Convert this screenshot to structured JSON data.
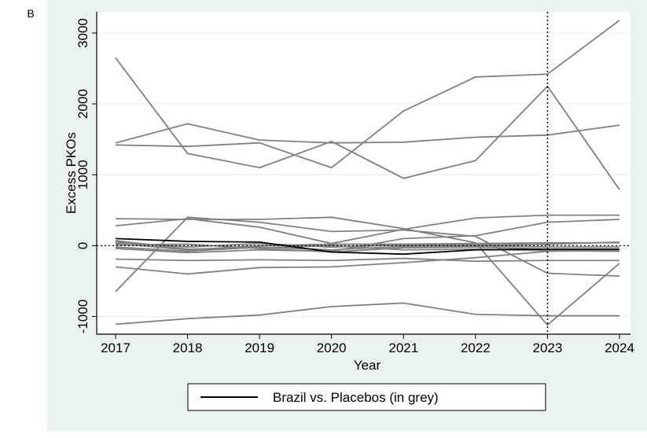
{
  "panel_label": "B",
  "colors": {
    "background": "#eaf2f3",
    "plot_bg": "#ffffff",
    "grid": "#e6eef0",
    "placebo": "#808080",
    "treated": "#000000"
  },
  "chart_data": {
    "type": "line",
    "title": "",
    "xlabel": "Year",
    "ylabel": "Excess PKOs",
    "x": [
      2017,
      2018,
      2019,
      2020,
      2021,
      2022,
      2023,
      2024
    ],
    "xlim": [
      2017,
      2024
    ],
    "ylim": [
      -1250,
      3300
    ],
    "yticks": [
      -1000,
      0,
      1000,
      2000,
      3000
    ],
    "grid": true,
    "reference_vline": 2023,
    "reference_hline": 0,
    "legend": {
      "position": "bottom",
      "label": "Brazil vs. Placebos (in grey)"
    },
    "treated": {
      "values": [
        100,
        60,
        50,
        -90,
        -120,
        -60,
        -50,
        -50
      ]
    },
    "placebos": [
      {
        "values": [
          2650,
          1300,
          1100,
          1470,
          950,
          1200,
          2250,
          790
        ]
      },
      {
        "values": [
          1450,
          1720,
          1490,
          1450,
          1460,
          1530,
          1560,
          1700
        ]
      },
      {
        "values": [
          1420,
          1400,
          1450,
          1100,
          1900,
          2380,
          2420,
          3180
        ]
      },
      {
        "values": [
          380,
          370,
          370,
          400,
          240,
          40,
          -1120,
          -250
        ]
      },
      {
        "values": [
          280,
          380,
          260,
          30,
          230,
          390,
          430,
          430
        ]
      },
      {
        "values": [
          -650,
          400,
          330,
          200,
          220,
          130,
          -390,
          -430
        ]
      },
      {
        "values": [
          -1110,
          -1030,
          -980,
          -860,
          -810,
          -970,
          -990,
          -990
        ]
      },
      {
        "values": [
          -300,
          -400,
          -310,
          -300,
          -240,
          -170,
          -80,
          -60
        ]
      },
      {
        "values": [
          -190,
          -210,
          -200,
          -210,
          -180,
          -220,
          -210,
          -210
        ]
      },
      {
        "values": [
          -40,
          -100,
          -60,
          -80,
          100,
          140,
          330,
          370
        ]
      },
      {
        "values": [
          30,
          -60,
          0,
          20,
          20,
          30,
          40,
          40
        ]
      },
      {
        "values": [
          50,
          -20,
          30,
          -20,
          10,
          10,
          20,
          50
        ]
      },
      {
        "values": [
          -20,
          -80,
          -20,
          -60,
          -10,
          0,
          -20,
          -20
        ]
      },
      {
        "values": [
          10,
          20,
          -40,
          -90,
          -30,
          -20,
          -50,
          -60
        ]
      },
      {
        "values": [
          70,
          -50,
          -30,
          0,
          -60,
          -50,
          -70,
          -80
        ]
      }
    ]
  }
}
